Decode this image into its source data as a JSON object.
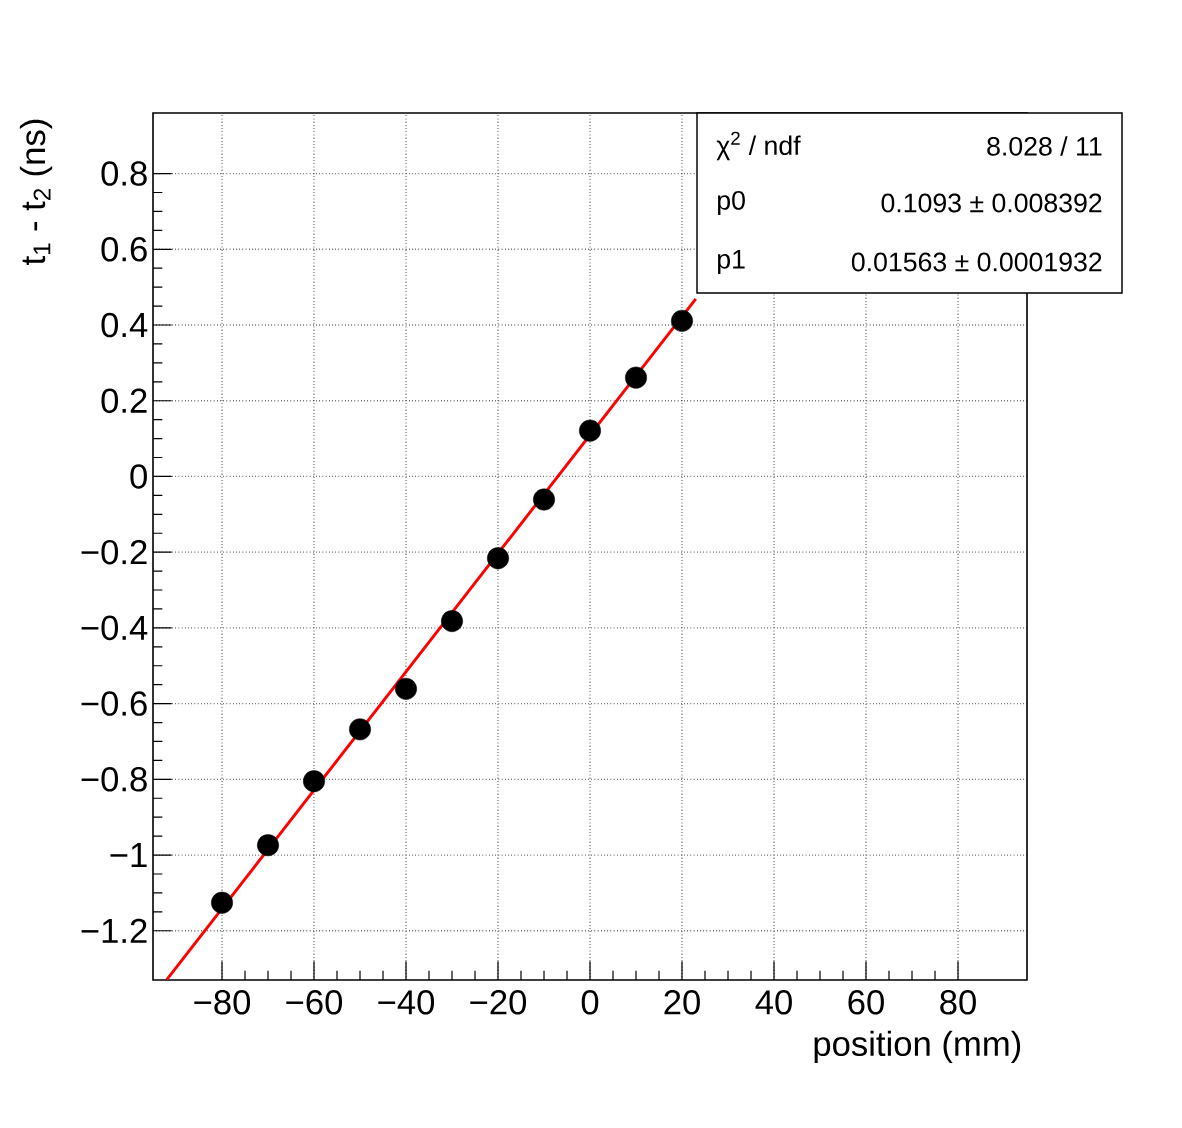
{
  "chart_data": {
    "type": "scatter",
    "xlabel": "position (mm)",
    "ylabel": "t$_{1}$ - t$_{2}$ (ns)",
    "xlim": [
      -95,
      95
    ],
    "ylim": [
      -1.33,
      0.96
    ],
    "xticks": [
      {
        "value": -80,
        "label": "−80"
      },
      {
        "value": -60,
        "label": "−60"
      },
      {
        "value": -40,
        "label": "−40"
      },
      {
        "value": -20,
        "label": "−20"
      },
      0,
      20,
      40,
      60,
      80
    ],
    "yticks": [
      {
        "value": -1.2,
        "label": "−1.2"
      },
      {
        "value": -1,
        "label": "−1"
      },
      {
        "value": -0.8,
        "label": "−0.8"
      },
      {
        "value": -0.6,
        "label": "−0.6"
      },
      {
        "value": -0.4,
        "label": "−0.4"
      },
      {
        "value": -0.2,
        "label": "−0.2"
      },
      0,
      0.2,
      0.4,
      0.6,
      0.8
    ],
    "grid": true,
    "series": [
      {
        "color": "#000000",
        "marker": "circle",
        "x": [
          -80,
          -70,
          -60,
          -50,
          -40,
          -30,
          -20,
          -10,
          0,
          10,
          20
        ],
        "values": [
          -1.126,
          -0.974,
          -0.805,
          -0.668,
          -0.561,
          -0.382,
          -0.216,
          -0.061,
          0.121,
          0.261,
          0.411
        ]
      },
      {
        "type": "line",
        "color": "#ff0000",
        "line_style": "solid",
        "x": [
          -92,
          23
        ],
        "values": [
          -1.329,
          0.469
        ]
      }
    ],
    "annotations": [
      "χ$^{2}$ / ndf",
      "8.028 / 11",
      "p0",
      "0.1093 ± 0.008392",
      "p1",
      "0.01563 ± 0.0001932"
    ]
  }
}
